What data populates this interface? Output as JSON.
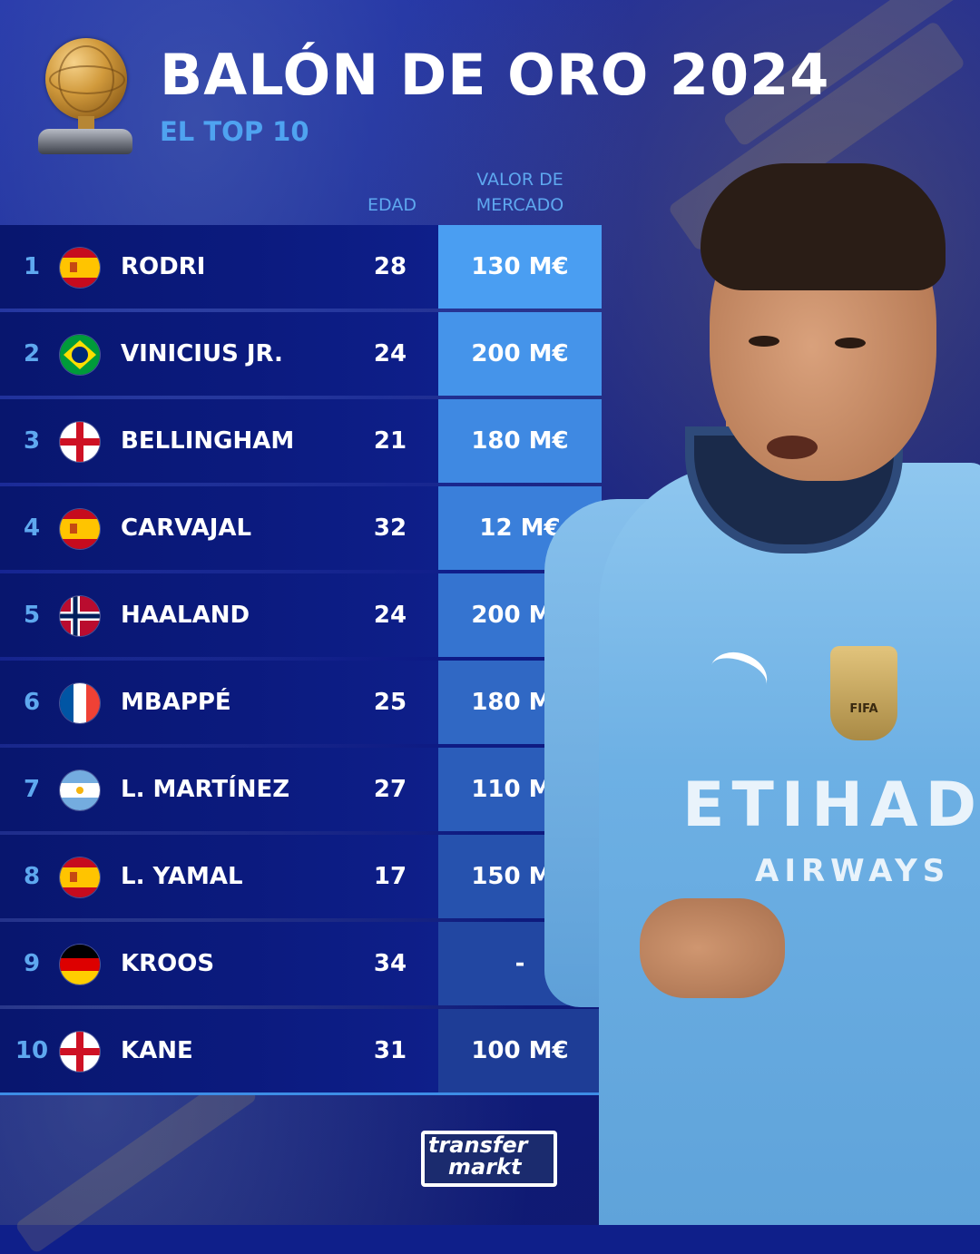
{
  "header": {
    "title": "BALÓN DE ORO 2024",
    "subtitle": "EL TOP 10"
  },
  "columns": {
    "age": "EDAD",
    "value_line1": "VALOR DE",
    "value_line2": "MERCADO"
  },
  "rows": [
    {
      "rank": "1",
      "flag": "spain-flag",
      "name": "RODRI",
      "age": "28",
      "value": "130 M€"
    },
    {
      "rank": "2",
      "flag": "brazil-flag",
      "name": "VINICIUS JR.",
      "age": "24",
      "value": "200 M€"
    },
    {
      "rank": "3",
      "flag": "england-flag",
      "name": "BELLINGHAM",
      "age": "21",
      "value": "180 M€"
    },
    {
      "rank": "4",
      "flag": "spain-flag",
      "name": "CARVAJAL",
      "age": "32",
      "value": "12 M€"
    },
    {
      "rank": "5",
      "flag": "norway-flag",
      "name": "HAALAND",
      "age": "24",
      "value": "200 M€"
    },
    {
      "rank": "6",
      "flag": "france-flag",
      "name": "MBAPPÉ",
      "age": "25",
      "value": "180 M€"
    },
    {
      "rank": "7",
      "flag": "argentina-flag",
      "name": "L. MARTÍNEZ",
      "age": "27",
      "value": "110 M€"
    },
    {
      "rank": "8",
      "flag": "spain-flag",
      "name": "L. YAMAL",
      "age": "17",
      "value": "150 M€"
    },
    {
      "rank": "9",
      "flag": "germany-flag",
      "name": "KROOS",
      "age": "34",
      "value": "-"
    },
    {
      "rank": "10",
      "flag": "england-flag",
      "name": "KANE",
      "age": "31",
      "value": "100 M€"
    }
  ],
  "value_cell_colors": [
    "#4a9ef2",
    "#4594ea",
    "#3f89e2",
    "#3a7fda",
    "#3574d0",
    "#3068c4",
    "#2b5dba",
    "#2652ae",
    "#2247a2",
    "#1e3d96"
  ],
  "player": {
    "sponsor_line1": "ETIHAD",
    "sponsor_line2": "AIRWAYS",
    "badge_text": "FIFA"
  },
  "logo": {
    "line1": "transfer",
    "line2": "markt"
  }
}
